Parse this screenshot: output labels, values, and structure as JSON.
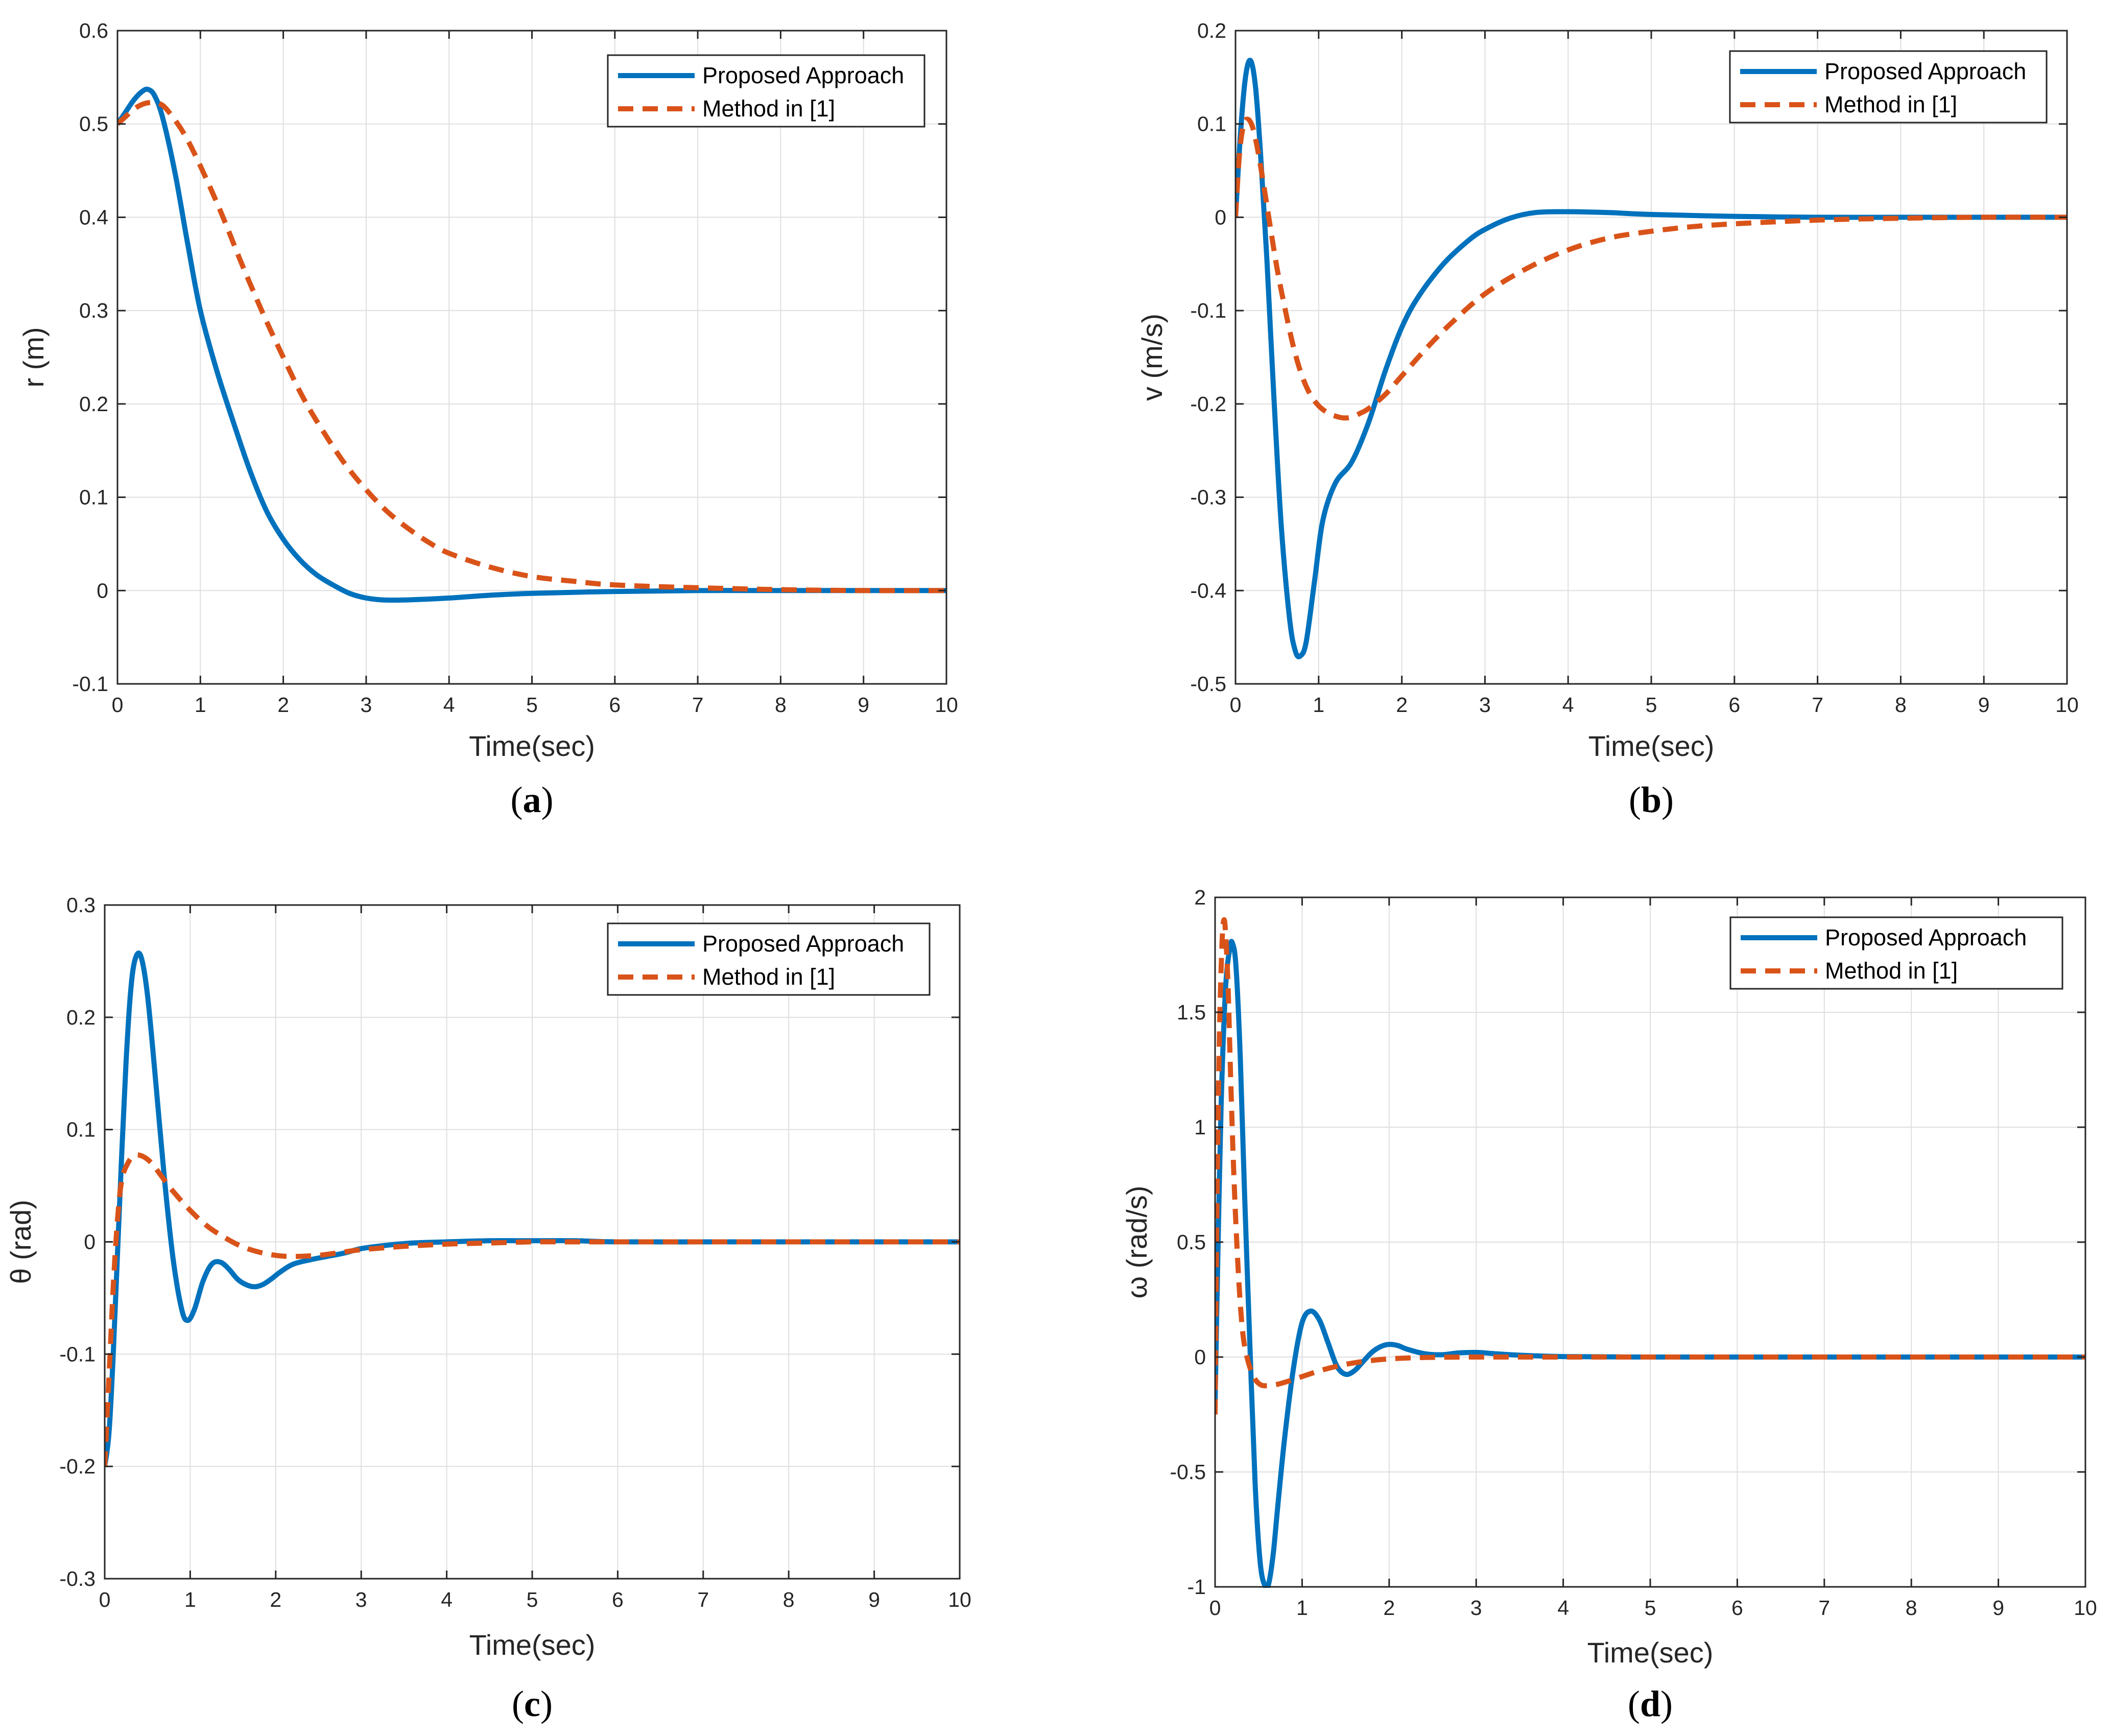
{
  "chart_data": [
    {
      "type": "line",
      "caption": "a",
      "xlabel": "Time(sec)",
      "ylabel": "r (m)",
      "xlim": [
        0,
        10
      ],
      "ylim": [
        -0.1,
        0.6
      ],
      "xticks": [
        0,
        1,
        2,
        3,
        4,
        5,
        6,
        7,
        8,
        9,
        10
      ],
      "yticks": [
        -0.1,
        0,
        0.1,
        0.2,
        0.3,
        0.4,
        0.5,
        0.6
      ],
      "ytick_labels": [
        "-0.1",
        "0",
        "0.1",
        "0.2",
        "0.3",
        "0.4",
        "0.5",
        "0.6"
      ],
      "grid": true,
      "legend_position": "top-right",
      "series": [
        {
          "name": "Proposed Approach",
          "color": "#0072bd",
          "style": "solid",
          "x": [
            0,
            0.1,
            0.2,
            0.3,
            0.37,
            0.45,
            0.55,
            0.7,
            0.85,
            1.0,
            1.2,
            1.4,
            1.6,
            1.8,
            2.0,
            2.2,
            2.4,
            2.6,
            2.8,
            3.0,
            3.2,
            3.5,
            4.0,
            4.5,
            5.0,
            6.0,
            7.0,
            8.0,
            9.0,
            10.0
          ],
          "y": [
            0.5,
            0.513,
            0.526,
            0.535,
            0.537,
            0.53,
            0.505,
            0.445,
            0.37,
            0.3,
            0.235,
            0.18,
            0.128,
            0.085,
            0.055,
            0.033,
            0.017,
            0.006,
            -0.003,
            -0.008,
            -0.01,
            -0.01,
            -0.008,
            -0.005,
            -0.003,
            -0.001,
            0,
            0,
            0,
            0
          ]
        },
        {
          "name": "Method in [1]",
          "color": "#d95319",
          "style": "dashed",
          "x": [
            0,
            0.1,
            0.2,
            0.3,
            0.4,
            0.5,
            0.6,
            0.8,
            1.0,
            1.25,
            1.5,
            1.75,
            2.0,
            2.25,
            2.5,
            2.75,
            3.0,
            3.25,
            3.5,
            3.75,
            4.0,
            4.5,
            5.0,
            5.5,
            6.0,
            7.0,
            8.0,
            9.0,
            10.0
          ],
          "y": [
            0.5,
            0.508,
            0.516,
            0.521,
            0.523,
            0.522,
            0.515,
            0.49,
            0.455,
            0.405,
            0.35,
            0.298,
            0.25,
            0.205,
            0.168,
            0.135,
            0.108,
            0.085,
            0.067,
            0.052,
            0.04,
            0.025,
            0.015,
            0.01,
            0.006,
            0.003,
            0.001,
            0,
            0
          ]
        }
      ]
    },
    {
      "type": "line",
      "caption": "b",
      "xlabel": "Time(sec)",
      "ylabel": "v (m/s)",
      "xlim": [
        0,
        10
      ],
      "ylim": [
        -0.5,
        0.2
      ],
      "xticks": [
        0,
        1,
        2,
        3,
        4,
        5,
        6,
        7,
        8,
        9,
        10
      ],
      "yticks": [
        -0.5,
        -0.4,
        -0.3,
        -0.2,
        -0.1,
        0,
        0.1,
        0.2
      ],
      "ytick_labels": [
        "-0.5",
        "-0.4",
        "-0.3",
        "-0.2",
        "-0.1",
        "0",
        "0.1",
        "0.2"
      ],
      "grid": true,
      "legend_position": "top-right",
      "series": [
        {
          "name": "Proposed Approach",
          "color": "#0072bd",
          "style": "solid",
          "x": [
            0,
            0.06,
            0.12,
            0.18,
            0.24,
            0.3,
            0.38,
            0.46,
            0.55,
            0.65,
            0.72,
            0.78,
            0.85,
            0.95,
            1.05,
            1.2,
            1.4,
            1.6,
            1.8,
            2.0,
            2.2,
            2.5,
            2.8,
            3.0,
            3.3,
            3.6,
            4.0,
            4.5,
            5.0,
            6.0,
            7.0,
            8.0,
            9.0,
            10.0
          ],
          "y": [
            0,
            0.09,
            0.15,
            0.168,
            0.14,
            0.07,
            -0.05,
            -0.19,
            -0.33,
            -0.43,
            -0.465,
            -0.47,
            -0.455,
            -0.39,
            -0.325,
            -0.285,
            -0.262,
            -0.22,
            -0.165,
            -0.118,
            -0.085,
            -0.05,
            -0.025,
            -0.013,
            -0.001,
            0.005,
            0.006,
            0.005,
            0.003,
            0.001,
            0,
            0,
            0,
            0
          ]
        },
        {
          "name": "Method in [1]",
          "color": "#d95319",
          "style": "dashed",
          "x": [
            0,
            0.05,
            0.1,
            0.15,
            0.2,
            0.25,
            0.32,
            0.4,
            0.5,
            0.6,
            0.7,
            0.8,
            0.9,
            1.0,
            1.1,
            1.2,
            1.3,
            1.4,
            1.5,
            1.6,
            1.8,
            2.0,
            2.3,
            2.6,
            3.0,
            3.5,
            4.0,
            4.5,
            5.0,
            5.5,
            6.0,
            7.0,
            8.0,
            9.0,
            10.0
          ],
          "y": [
            0,
            0.07,
            0.1,
            0.105,
            0.098,
            0.08,
            0.045,
            0,
            -0.055,
            -0.1,
            -0.14,
            -0.17,
            -0.19,
            -0.202,
            -0.209,
            -0.213,
            -0.215,
            -0.214,
            -0.21,
            -0.205,
            -0.19,
            -0.17,
            -0.14,
            -0.113,
            -0.082,
            -0.055,
            -0.035,
            -0.022,
            -0.015,
            -0.01,
            -0.007,
            -0.003,
            -0.001,
            0,
            0
          ]
        }
      ]
    },
    {
      "type": "line",
      "caption": "c",
      "xlabel": "Time(sec)",
      "ylabel": "θ (rad)",
      "xlim": [
        0,
        10
      ],
      "ylim": [
        -0.3,
        0.3
      ],
      "xticks": [
        0,
        1,
        2,
        3,
        4,
        5,
        6,
        7,
        8,
        9,
        10
      ],
      "yticks": [
        -0.3,
        -0.2,
        -0.1,
        0,
        0.1,
        0.2,
        0.3
      ],
      "ytick_labels": [
        "-0.3",
        "-0.2",
        "-0.1",
        "0",
        "0.1",
        "0.2",
        "0.3"
      ],
      "grid": true,
      "legend_position": "top-right",
      "series": [
        {
          "name": "Proposed Approach",
          "color": "#0072bd",
          "style": "solid",
          "x": [
            0,
            0.05,
            0.1,
            0.15,
            0.2,
            0.25,
            0.3,
            0.35,
            0.42,
            0.5,
            0.6,
            0.7,
            0.8,
            0.9,
            0.97,
            1.05,
            1.15,
            1.25,
            1.35,
            1.45,
            1.55,
            1.65,
            1.75,
            1.85,
            1.95,
            2.05,
            2.2,
            2.4,
            2.6,
            2.8,
            3.0,
            3.3,
            3.6,
            4.0,
            4.5,
            5.0,
            5.5,
            6.0,
            7.0,
            8.0,
            9.0,
            10.0
          ],
          "y": [
            -0.2,
            -0.17,
            -0.1,
            -0.01,
            0.08,
            0.16,
            0.22,
            0.25,
            0.255,
            0.22,
            0.14,
            0.055,
            -0.015,
            -0.06,
            -0.07,
            -0.06,
            -0.035,
            -0.02,
            -0.018,
            -0.024,
            -0.033,
            -0.038,
            -0.04,
            -0.038,
            -0.033,
            -0.027,
            -0.02,
            -0.016,
            -0.013,
            -0.01,
            -0.006,
            -0.003,
            -0.001,
            0,
            0.001,
            0.001,
            0.001,
            0,
            0,
            0,
            0,
            0
          ]
        },
        {
          "name": "Method in [1]",
          "color": "#d95319",
          "style": "dashed",
          "x": [
            0,
            0.05,
            0.1,
            0.15,
            0.2,
            0.27,
            0.35,
            0.45,
            0.55,
            0.65,
            0.8,
            1.0,
            1.2,
            1.4,
            1.6,
            1.8,
            2.0,
            2.2,
            2.5,
            2.8,
            3.0,
            3.5,
            4.0,
            4.5,
            5.0,
            5.5,
            6.0,
            7.0,
            8.0,
            9.0,
            10.0
          ],
          "y": [
            -0.2,
            -0.12,
            -0.04,
            0.02,
            0.055,
            0.07,
            0.077,
            0.076,
            0.07,
            0.06,
            0.045,
            0.028,
            0.014,
            0.004,
            -0.004,
            -0.009,
            -0.012,
            -0.013,
            -0.012,
            -0.009,
            -0.007,
            -0.004,
            -0.002,
            -0.001,
            0,
            0,
            0,
            0,
            0,
            0,
            0
          ]
        }
      ]
    },
    {
      "type": "line",
      "caption": "d",
      "xlabel": "Time(sec)",
      "ylabel": "ω (rad/s)",
      "xlim": [
        0,
        10
      ],
      "ylim": [
        -1,
        2
      ],
      "xticks": [
        0,
        1,
        2,
        3,
        4,
        5,
        6,
        7,
        8,
        9,
        10
      ],
      "yticks": [
        -1,
        -0.5,
        0,
        0.5,
        1,
        1.5,
        2
      ],
      "ytick_labels": [
        "-1",
        "-0.5",
        "0",
        "0.5",
        "1",
        "1.5",
        "2"
      ],
      "grid": true,
      "legend_position": "top-right",
      "series": [
        {
          "name": "Proposed Approach",
          "color": "#0072bd",
          "style": "solid",
          "x": [
            0,
            0.03,
            0.07,
            0.12,
            0.17,
            0.2,
            0.24,
            0.29,
            0.34,
            0.4,
            0.46,
            0.52,
            0.58,
            0.62,
            0.67,
            0.72,
            0.8,
            0.9,
            1.0,
            1.1,
            1.2,
            1.3,
            1.4,
            1.5,
            1.6,
            1.7,
            1.8,
            1.9,
            2.0,
            2.1,
            2.2,
            2.4,
            2.6,
            2.8,
            3.0,
            3.2,
            3.5,
            4.0,
            5.0,
            6.0,
            7.0,
            8.0,
            9.0,
            10.0
          ],
          "y": [
            -0.2,
            0.4,
            1.1,
            1.6,
            1.78,
            1.8,
            1.7,
            1.3,
            0.7,
            0.05,
            -0.55,
            -0.9,
            -1.0,
            -0.98,
            -0.85,
            -0.65,
            -0.35,
            -0.05,
            0.15,
            0.2,
            0.16,
            0.06,
            -0.04,
            -0.075,
            -0.06,
            -0.02,
            0.02,
            0.045,
            0.055,
            0.05,
            0.035,
            0.015,
            0.01,
            0.018,
            0.02,
            0.015,
            0.008,
            0.002,
            0,
            0,
            0,
            0,
            0,
            0
          ]
        },
        {
          "name": "Method in [1]",
          "color": "#d95319",
          "style": "dashed",
          "x": [
            0,
            0.02,
            0.05,
            0.08,
            0.1,
            0.12,
            0.15,
            0.18,
            0.22,
            0.27,
            0.32,
            0.38,
            0.45,
            0.52,
            0.6,
            0.7,
            0.8,
            0.9,
            1.0,
            1.2,
            1.4,
            1.6,
            1.8,
            2.0,
            2.3,
            2.6,
            3.0,
            3.5,
            4.0,
            5.0,
            6.0,
            7.0,
            8.0,
            9.0,
            10.0
          ],
          "y": [
            -0.25,
            0.6,
            1.4,
            1.8,
            1.9,
            1.85,
            1.6,
            1.2,
            0.75,
            0.35,
            0.1,
            -0.02,
            -0.09,
            -0.12,
            -0.125,
            -0.12,
            -0.11,
            -0.098,
            -0.085,
            -0.06,
            -0.04,
            -0.025,
            -0.015,
            -0.008,
            -0.003,
            -0.001,
            0,
            0,
            0,
            0,
            0,
            0,
            0,
            0,
            0
          ]
        }
      ]
    }
  ]
}
